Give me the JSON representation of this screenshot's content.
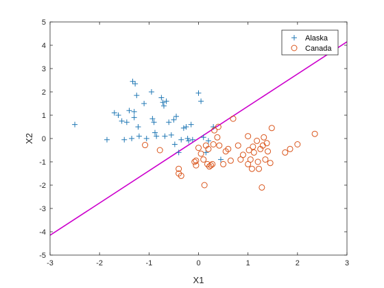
{
  "chart_data": {
    "type": "scatter",
    "title": "",
    "xlabel": "X1",
    "ylabel": "X2",
    "xlim": [
      -3,
      3
    ],
    "ylim": [
      -5,
      5
    ],
    "xticks": [
      -3,
      -2,
      -1,
      0,
      1,
      2,
      3
    ],
    "yticks": [
      -5,
      -4,
      -3,
      -2,
      -1,
      0,
      1,
      2,
      3,
      4,
      5
    ],
    "grid": false,
    "legend_position": "top-right",
    "series": [
      {
        "name": "Alaska",
        "marker": "plus",
        "color": "#1f77b4",
        "points": [
          [
            -2.5,
            0.6
          ],
          [
            -1.85,
            -0.05
          ],
          [
            -1.7,
            1.1
          ],
          [
            -1.62,
            1.0
          ],
          [
            -1.55,
            0.75
          ],
          [
            -1.5,
            -0.05
          ],
          [
            -1.45,
            0.7
          ],
          [
            -1.4,
            1.2
          ],
          [
            -1.35,
            0.0
          ],
          [
            -1.33,
            2.45
          ],
          [
            -1.3,
            1.15
          ],
          [
            -1.3,
            0.9
          ],
          [
            -1.28,
            2.35
          ],
          [
            -1.25,
            1.85
          ],
          [
            -1.22,
            0.5
          ],
          [
            -1.2,
            0.1
          ],
          [
            -1.1,
            1.5
          ],
          [
            -1.05,
            0.0
          ],
          [
            -0.95,
            2.0
          ],
          [
            -0.93,
            0.85
          ],
          [
            -0.9,
            0.7
          ],
          [
            -0.88,
            0.25
          ],
          [
            -0.85,
            0.1
          ],
          [
            -0.75,
            1.75
          ],
          [
            -0.72,
            1.55
          ],
          [
            -0.7,
            1.4
          ],
          [
            -0.68,
            0.1
          ],
          [
            -0.65,
            1.6
          ],
          [
            -0.6,
            0.7
          ],
          [
            -0.55,
            0.15
          ],
          [
            -0.5,
            0.8
          ],
          [
            -0.48,
            -0.25
          ],
          [
            -0.45,
            0.95
          ],
          [
            -0.4,
            -0.6
          ],
          [
            -0.35,
            -0.05
          ],
          [
            -0.3,
            0.45
          ],
          [
            -0.25,
            0.5
          ],
          [
            -0.22,
            0.0
          ],
          [
            -0.2,
            -0.1
          ],
          [
            -0.15,
            0.6
          ],
          [
            -0.12,
            -0.05
          ],
          [
            0.0,
            1.95
          ],
          [
            0.05,
            1.6
          ],
          [
            0.1,
            0.05
          ],
          [
            0.15,
            -0.6
          ],
          [
            0.2,
            -0.1
          ],
          [
            0.3,
            0.5
          ],
          [
            0.45,
            -0.9
          ]
        ]
      },
      {
        "name": "Canada",
        "marker": "circle",
        "color": "#d95319",
        "points": [
          [
            -1.08,
            -0.28
          ],
          [
            -0.78,
            -0.5
          ],
          [
            -0.4,
            -1.3
          ],
          [
            -0.4,
            -1.5
          ],
          [
            -0.35,
            -1.6
          ],
          [
            -0.08,
            -1.0
          ],
          [
            -0.05,
            -0.95
          ],
          [
            -0.05,
            -1.15
          ],
          [
            0.0,
            -0.4
          ],
          [
            0.05,
            -0.65
          ],
          [
            0.1,
            -0.9
          ],
          [
            0.12,
            -2.0
          ],
          [
            0.15,
            -0.3
          ],
          [
            0.18,
            -1.1
          ],
          [
            0.2,
            -0.45
          ],
          [
            0.22,
            -1.2
          ],
          [
            0.25,
            -1.15
          ],
          [
            0.28,
            -1.1
          ],
          [
            0.3,
            -0.25
          ],
          [
            0.32,
            0.35
          ],
          [
            0.38,
            0.05
          ],
          [
            0.4,
            0.5
          ],
          [
            0.42,
            -0.3
          ],
          [
            0.5,
            -1.1
          ],
          [
            0.55,
            -0.55
          ],
          [
            0.6,
            -0.45
          ],
          [
            0.65,
            -0.95
          ],
          [
            0.7,
            0.85
          ],
          [
            0.8,
            -0.3
          ],
          [
            0.85,
            -0.9
          ],
          [
            0.9,
            -0.7
          ],
          [
            1.0,
            0.1
          ],
          [
            1.0,
            -1.1
          ],
          [
            1.02,
            -0.5
          ],
          [
            1.05,
            -0.9
          ],
          [
            1.08,
            -1.3
          ],
          [
            1.1,
            -0.35
          ],
          [
            1.12,
            -0.6
          ],
          [
            1.18,
            -0.1
          ],
          [
            1.2,
            -1.0
          ],
          [
            1.22,
            -1.3
          ],
          [
            1.25,
            -0.45
          ],
          [
            1.28,
            -2.1
          ],
          [
            1.3,
            -0.3
          ],
          [
            1.32,
            0.05
          ],
          [
            1.35,
            -0.9
          ],
          [
            1.38,
            -0.2
          ],
          [
            1.4,
            -0.55
          ],
          [
            1.45,
            -1.05
          ],
          [
            1.48,
            0.45
          ],
          [
            1.75,
            -0.6
          ],
          [
            1.85,
            -0.45
          ],
          [
            2.0,
            -0.25
          ],
          [
            2.35,
            0.2
          ]
        ]
      }
    ],
    "decision_line": {
      "color": "#cc00cc",
      "points": [
        [
          -3,
          -4.15
        ],
        [
          3,
          4.15
        ]
      ]
    }
  }
}
